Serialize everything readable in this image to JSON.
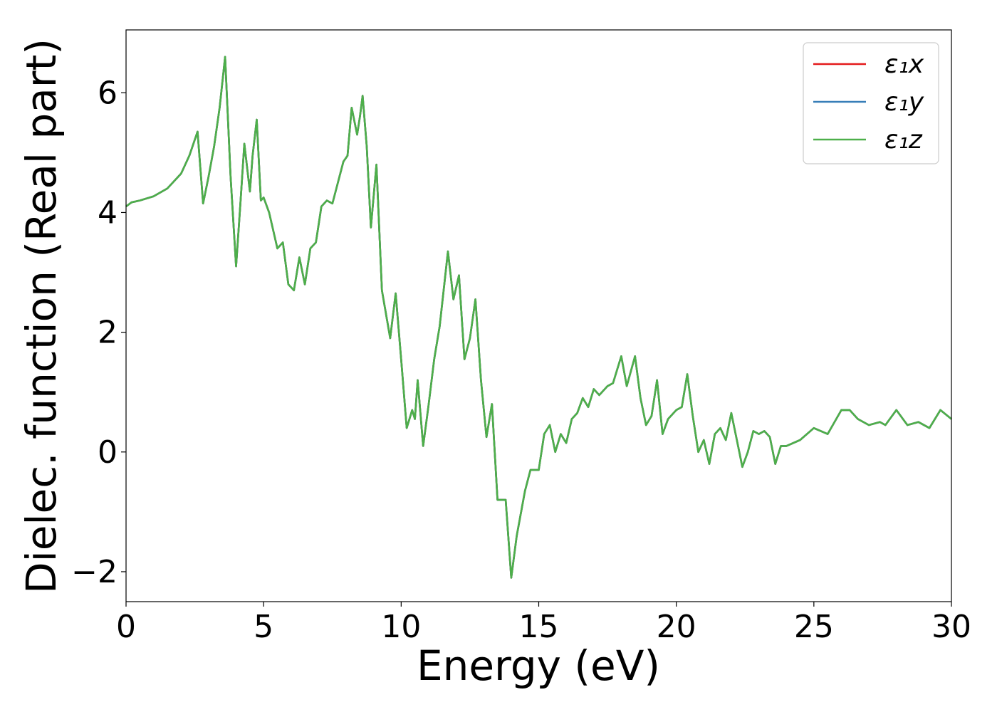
{
  "chart_data": {
    "type": "line",
    "xlabel": "Energy (eV)",
    "ylabel": "Dielec. function (Real part)",
    "xlim": [
      0,
      30
    ],
    "ylim": [
      -2.5,
      7.05
    ],
    "xticks": [
      0,
      5,
      10,
      15,
      20,
      25,
      30
    ],
    "yticks": [
      -2,
      0,
      2,
      4,
      6
    ],
    "xtick_labels": [
      "0",
      "5",
      "10",
      "15",
      "20",
      "25",
      "30"
    ],
    "ytick_labels": [
      "−2",
      "0",
      "2",
      "4",
      "6"
    ],
    "grid": false,
    "legend_position": "top-right",
    "series": [
      {
        "name": "ε₁x",
        "color": "#e41a1c",
        "x": [
          0,
          0.2,
          0.5,
          1.0,
          1.5,
          2.0,
          2.3,
          2.6,
          2.8,
          3.0,
          3.2,
          3.4,
          3.6,
          3.8,
          4.0,
          4.15,
          4.3,
          4.5,
          4.6,
          4.75,
          4.9,
          5.0,
          5.2,
          5.5,
          5.7,
          5.9,
          6.1,
          6.3,
          6.5,
          6.7,
          6.9,
          7.1,
          7.3,
          7.5,
          7.7,
          7.9,
          8.05,
          8.2,
          8.4,
          8.5,
          8.6,
          8.75,
          8.9,
          9.1,
          9.3,
          9.6,
          9.8,
          10.0,
          10.2,
          10.4,
          10.5,
          10.6,
          10.8,
          11.0,
          11.2,
          11.4,
          11.7,
          11.9,
          12.1,
          12.3,
          12.5,
          12.7,
          12.9,
          13.1,
          13.3,
          13.5,
          13.8,
          14.0,
          14.2,
          14.5,
          14.7,
          15.0,
          15.2,
          15.4,
          15.6,
          15.8,
          16.0,
          16.2,
          16.4,
          16.6,
          16.8,
          17.0,
          17.2,
          17.5,
          17.7,
          18.0,
          18.2,
          18.5,
          18.7,
          18.9,
          19.1,
          19.3,
          19.5,
          19.7,
          20.0,
          20.2,
          20.4,
          20.6,
          20.8,
          21.0,
          21.2,
          21.4,
          21.6,
          21.8,
          22.0,
          22.2,
          22.4,
          22.6,
          22.8,
          23.0,
          23.2,
          23.4,
          23.6,
          23.8,
          24.0,
          24.5,
          25.0,
          25.5,
          26.0,
          26.3,
          26.6,
          27.0,
          27.4,
          27.6,
          28.0,
          28.4,
          28.8,
          29.2,
          29.6,
          30.0
        ],
        "y": [
          4.1,
          4.17,
          4.2,
          4.27,
          4.4,
          4.65,
          4.95,
          5.35,
          4.15,
          4.6,
          5.1,
          5.75,
          6.6,
          4.6,
          3.1,
          4.1,
          5.15,
          4.35,
          4.95,
          5.55,
          4.2,
          4.25,
          4.0,
          3.4,
          3.5,
          2.8,
          2.7,
          3.25,
          2.8,
          3.4,
          3.5,
          4.1,
          4.2,
          4.15,
          4.5,
          4.85,
          4.95,
          5.75,
          5.3,
          5.6,
          5.95,
          5.1,
          3.75,
          4.8,
          2.7,
          1.9,
          2.65,
          1.55,
          0.4,
          0.7,
          0.55,
          1.2,
          0.1,
          0.8,
          1.55,
          2.1,
          3.35,
          2.55,
          2.95,
          1.55,
          1.9,
          2.55,
          1.2,
          0.25,
          0.8,
          -0.8,
          -0.8,
          -2.1,
          -1.4,
          -0.65,
          -0.3,
          -0.3,
          0.3,
          0.45,
          0.0,
          0.3,
          0.15,
          0.55,
          0.65,
          0.9,
          0.75,
          1.05,
          0.95,
          1.1,
          1.15,
          1.6,
          1.1,
          1.6,
          0.9,
          0.45,
          0.6,
          1.2,
          0.3,
          0.55,
          0.7,
          0.75,
          1.3,
          0.6,
          0.0,
          0.2,
          -0.2,
          0.3,
          0.4,
          0.2,
          0.65,
          0.2,
          -0.25,
          0.0,
          0.35,
          0.3,
          0.35,
          0.25,
          -0.2,
          0.1,
          0.1,
          0.2,
          0.4,
          0.3,
          0.7,
          0.7,
          0.55,
          0.45,
          0.5,
          0.45,
          0.7,
          0.45,
          0.5,
          0.4,
          0.7,
          0.55
        ]
      },
      {
        "name": "ε₁y",
        "color": "#377eb8",
        "x": [
          0,
          0.2,
          0.5,
          1.0,
          1.5,
          2.0,
          2.3,
          2.6,
          2.8,
          3.0,
          3.2,
          3.4,
          3.6,
          3.8,
          4.0,
          4.15,
          4.3,
          4.5,
          4.6,
          4.75,
          4.9,
          5.0,
          5.2,
          5.5,
          5.7,
          5.9,
          6.1,
          6.3,
          6.5,
          6.7,
          6.9,
          7.1,
          7.3,
          7.5,
          7.7,
          7.9,
          8.05,
          8.2,
          8.4,
          8.5,
          8.6,
          8.75,
          8.9,
          9.1,
          9.3,
          9.6,
          9.8,
          10.0,
          10.2,
          10.4,
          10.5,
          10.6,
          10.8,
          11.0,
          11.2,
          11.4,
          11.7,
          11.9,
          12.1,
          12.3,
          12.5,
          12.7,
          12.9,
          13.1,
          13.3,
          13.5,
          13.8,
          14.0,
          14.2,
          14.5,
          14.7,
          15.0,
          15.2,
          15.4,
          15.6,
          15.8,
          16.0,
          16.2,
          16.4,
          16.6,
          16.8,
          17.0,
          17.2,
          17.5,
          17.7,
          18.0,
          18.2,
          18.5,
          18.7,
          18.9,
          19.1,
          19.3,
          19.5,
          19.7,
          20.0,
          20.2,
          20.4,
          20.6,
          20.8,
          21.0,
          21.2,
          21.4,
          21.6,
          21.8,
          22.0,
          22.2,
          22.4,
          22.6,
          22.8,
          23.0,
          23.2,
          23.4,
          23.6,
          23.8,
          24.0,
          24.5,
          25.0,
          25.5,
          26.0,
          26.3,
          26.6,
          27.0,
          27.4,
          27.6,
          28.0,
          28.4,
          28.8,
          29.2,
          29.6,
          30.0
        ],
        "y": [
          4.1,
          4.17,
          4.2,
          4.27,
          4.4,
          4.65,
          4.95,
          5.35,
          4.15,
          4.6,
          5.1,
          5.75,
          6.6,
          4.6,
          3.1,
          4.1,
          5.15,
          4.35,
          4.95,
          5.55,
          4.2,
          4.25,
          4.0,
          3.4,
          3.5,
          2.8,
          2.7,
          3.25,
          2.8,
          3.4,
          3.5,
          4.1,
          4.2,
          4.15,
          4.5,
          4.85,
          4.95,
          5.75,
          5.3,
          5.6,
          5.95,
          5.1,
          3.75,
          4.8,
          2.7,
          1.9,
          2.65,
          1.55,
          0.4,
          0.7,
          0.55,
          1.2,
          0.1,
          0.8,
          1.55,
          2.1,
          3.35,
          2.55,
          2.95,
          1.55,
          1.9,
          2.55,
          1.2,
          0.25,
          0.8,
          -0.8,
          -0.8,
          -2.1,
          -1.4,
          -0.65,
          -0.3,
          -0.3,
          0.3,
          0.45,
          0.0,
          0.3,
          0.15,
          0.55,
          0.65,
          0.9,
          0.75,
          1.05,
          0.95,
          1.1,
          1.15,
          1.6,
          1.1,
          1.6,
          0.9,
          0.45,
          0.6,
          1.2,
          0.3,
          0.55,
          0.7,
          0.75,
          1.3,
          0.6,
          0.0,
          0.2,
          -0.2,
          0.3,
          0.4,
          0.2,
          0.65,
          0.2,
          -0.25,
          0.0,
          0.35,
          0.3,
          0.35,
          0.25,
          -0.2,
          0.1,
          0.1,
          0.2,
          0.4,
          0.3,
          0.7,
          0.7,
          0.55,
          0.45,
          0.5,
          0.45,
          0.7,
          0.45,
          0.5,
          0.4,
          0.7,
          0.55
        ]
      },
      {
        "name": "ε₁z",
        "color": "#4daf4a",
        "x": [
          0,
          0.2,
          0.5,
          1.0,
          1.5,
          2.0,
          2.3,
          2.6,
          2.8,
          3.0,
          3.2,
          3.4,
          3.6,
          3.8,
          4.0,
          4.15,
          4.3,
          4.5,
          4.6,
          4.75,
          4.9,
          5.0,
          5.2,
          5.5,
          5.7,
          5.9,
          6.1,
          6.3,
          6.5,
          6.7,
          6.9,
          7.1,
          7.3,
          7.5,
          7.7,
          7.9,
          8.05,
          8.2,
          8.4,
          8.5,
          8.6,
          8.75,
          8.9,
          9.1,
          9.3,
          9.6,
          9.8,
          10.0,
          10.2,
          10.4,
          10.5,
          10.6,
          10.8,
          11.0,
          11.2,
          11.4,
          11.7,
          11.9,
          12.1,
          12.3,
          12.5,
          12.7,
          12.9,
          13.1,
          13.3,
          13.5,
          13.8,
          14.0,
          14.2,
          14.5,
          14.7,
          15.0,
          15.2,
          15.4,
          15.6,
          15.8,
          16.0,
          16.2,
          16.4,
          16.6,
          16.8,
          17.0,
          17.2,
          17.5,
          17.7,
          18.0,
          18.2,
          18.5,
          18.7,
          18.9,
          19.1,
          19.3,
          19.5,
          19.7,
          20.0,
          20.2,
          20.4,
          20.6,
          20.8,
          21.0,
          21.2,
          21.4,
          21.6,
          21.8,
          22.0,
          22.2,
          22.4,
          22.6,
          22.8,
          23.0,
          23.2,
          23.4,
          23.6,
          23.8,
          24.0,
          24.5,
          25.0,
          25.5,
          26.0,
          26.3,
          26.6,
          27.0,
          27.4,
          27.6,
          28.0,
          28.4,
          28.8,
          29.2,
          29.6,
          30.0
        ],
        "y": [
          4.1,
          4.17,
          4.2,
          4.27,
          4.4,
          4.65,
          4.95,
          5.35,
          4.15,
          4.6,
          5.1,
          5.75,
          6.6,
          4.6,
          3.1,
          4.1,
          5.15,
          4.35,
          4.95,
          5.55,
          4.2,
          4.25,
          4.0,
          3.4,
          3.5,
          2.8,
          2.7,
          3.25,
          2.8,
          3.4,
          3.5,
          4.1,
          4.2,
          4.15,
          4.5,
          4.85,
          4.95,
          5.75,
          5.3,
          5.6,
          5.95,
          5.1,
          3.75,
          4.8,
          2.7,
          1.9,
          2.65,
          1.55,
          0.4,
          0.7,
          0.55,
          1.2,
          0.1,
          0.8,
          1.55,
          2.1,
          3.35,
          2.55,
          2.95,
          1.55,
          1.9,
          2.55,
          1.2,
          0.25,
          0.8,
          -0.8,
          -0.8,
          -2.1,
          -1.4,
          -0.65,
          -0.3,
          -0.3,
          0.3,
          0.45,
          0.0,
          0.3,
          0.15,
          0.55,
          0.65,
          0.9,
          0.75,
          1.05,
          0.95,
          1.1,
          1.15,
          1.6,
          1.1,
          1.6,
          0.9,
          0.45,
          0.6,
          1.2,
          0.3,
          0.55,
          0.7,
          0.75,
          1.3,
          0.6,
          0.0,
          0.2,
          -0.2,
          0.3,
          0.4,
          0.2,
          0.65,
          0.2,
          -0.25,
          0.0,
          0.35,
          0.3,
          0.35,
          0.25,
          -0.2,
          0.1,
          0.1,
          0.2,
          0.4,
          0.3,
          0.7,
          0.7,
          0.55,
          0.45,
          0.5,
          0.45,
          0.7,
          0.45,
          0.5,
          0.4,
          0.7,
          0.55
        ]
      }
    ]
  }
}
